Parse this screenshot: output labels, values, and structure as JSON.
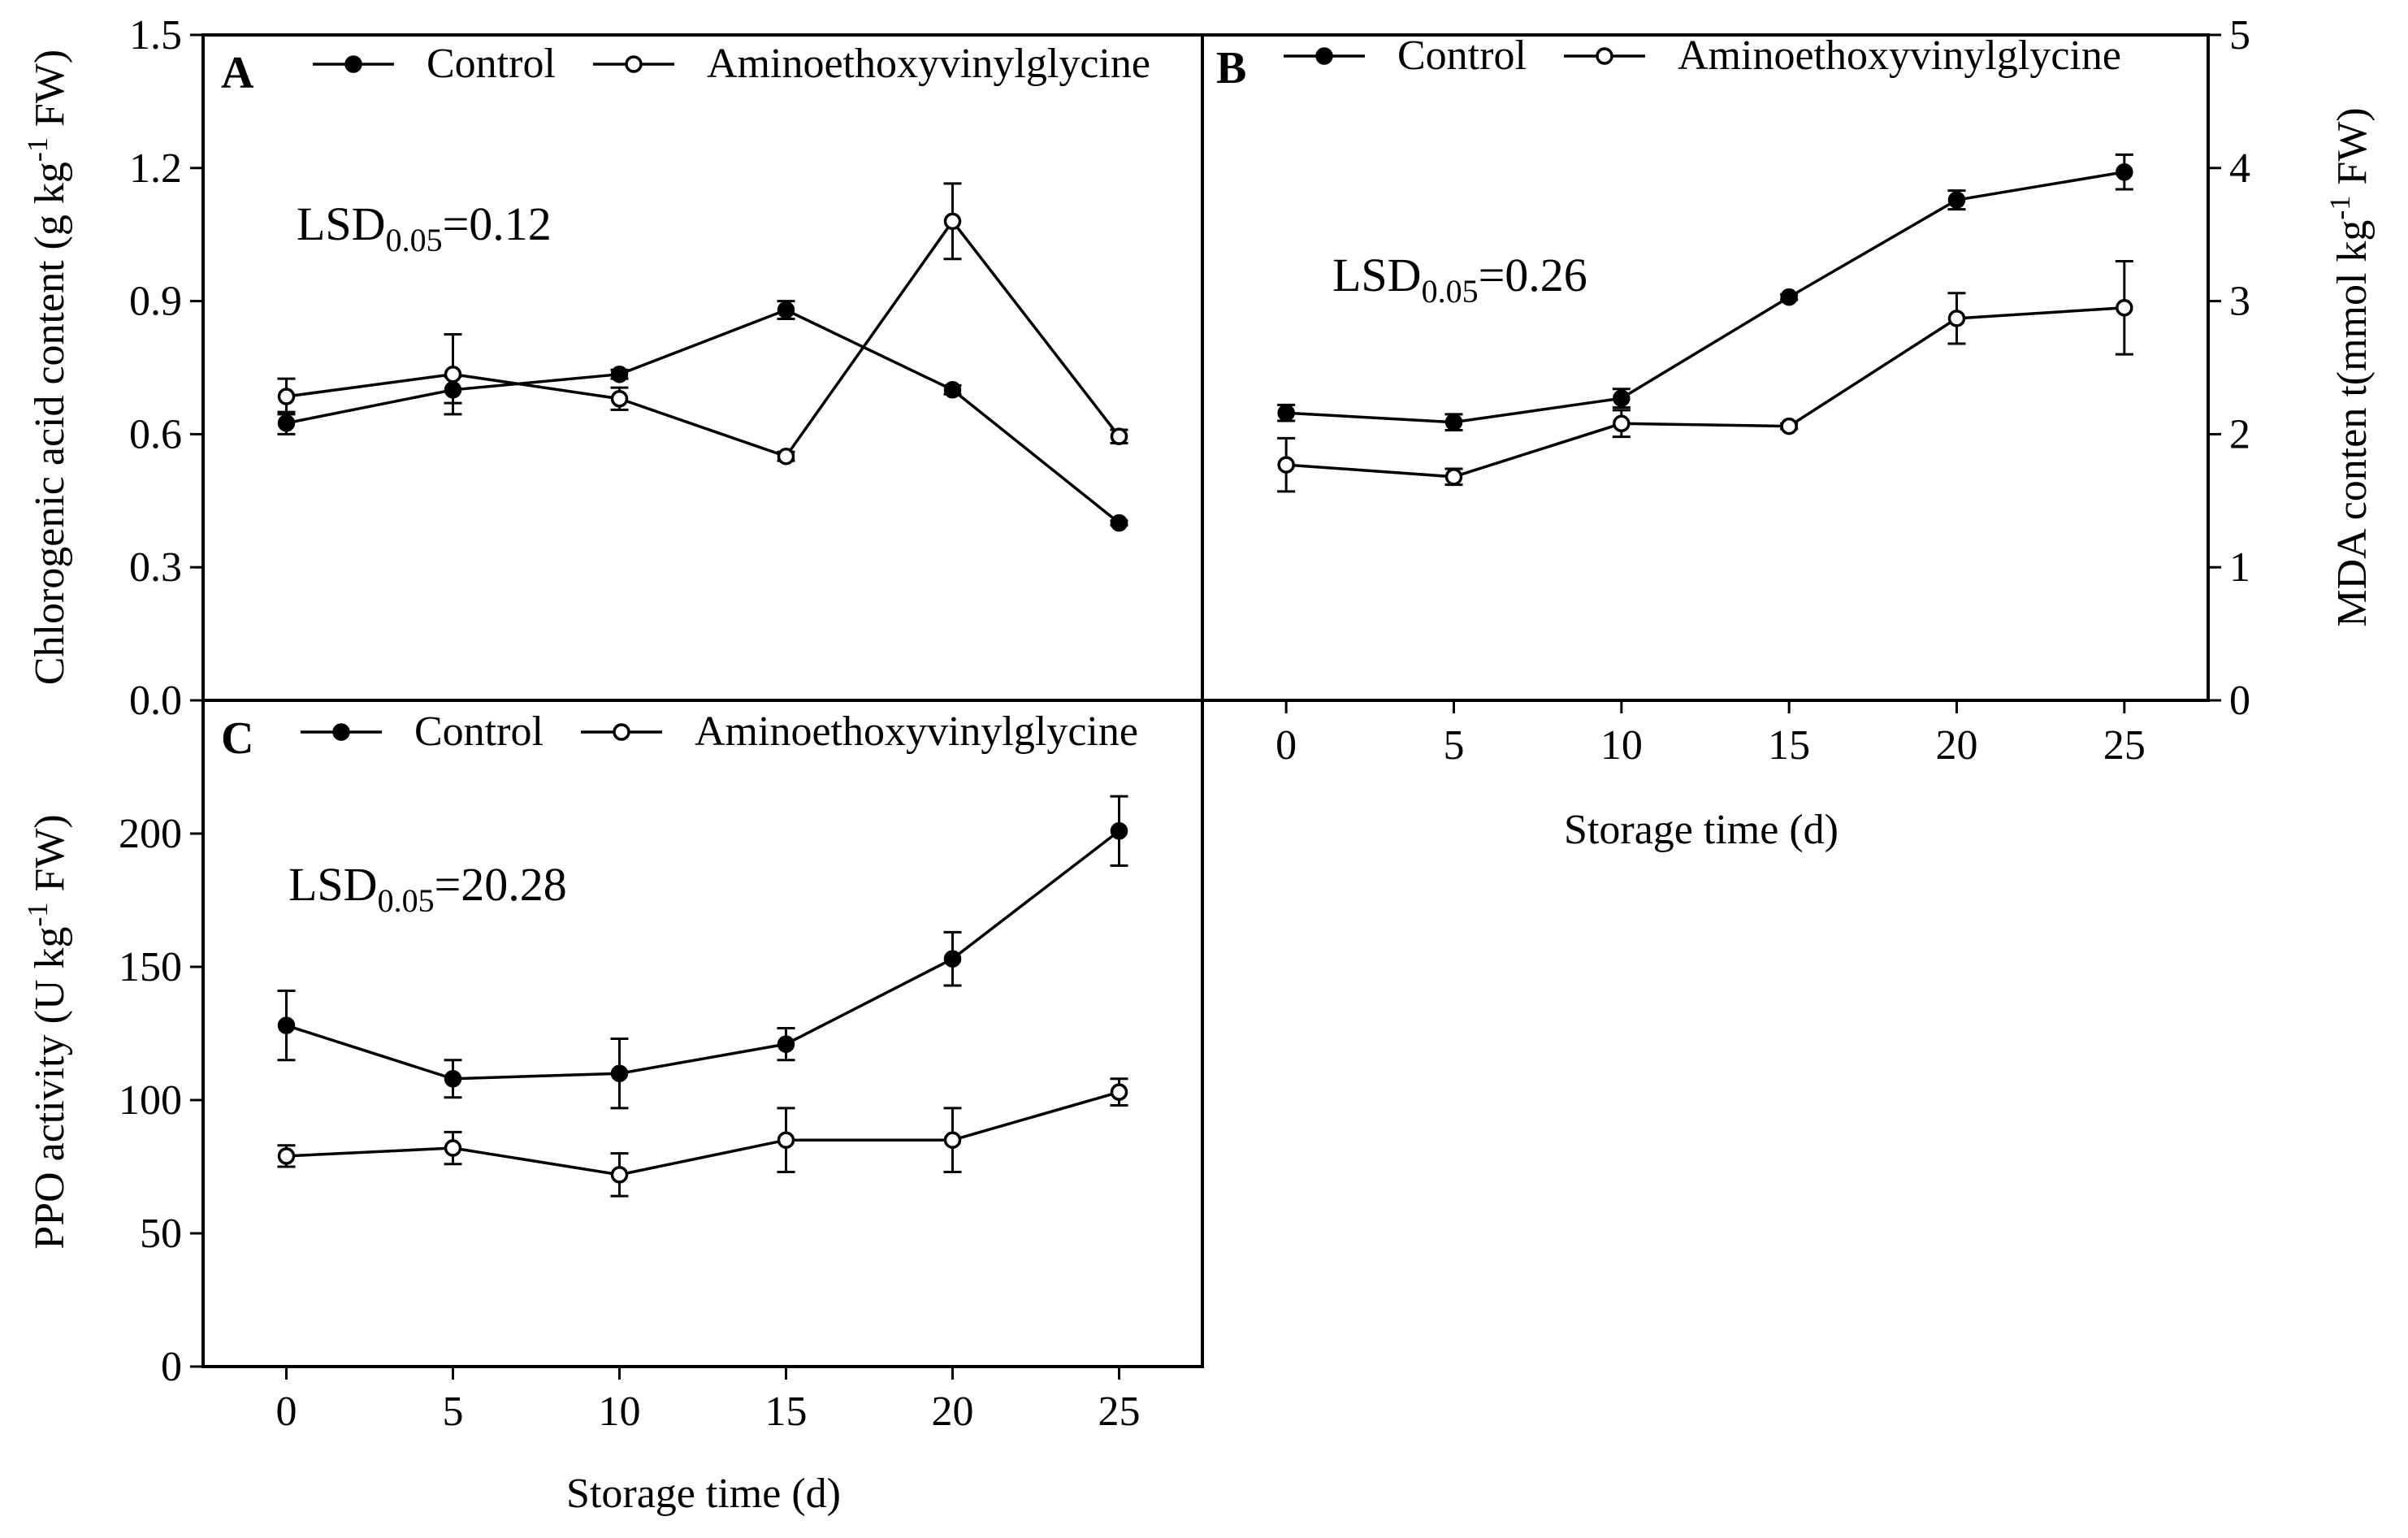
{
  "chart_data": [
    {
      "panel": "A",
      "type": "line",
      "x": [
        0,
        5,
        10,
        15,
        20,
        25
      ],
      "xlim": [
        -2.5,
        27.5
      ],
      "ylim": [
        0,
        1.5
      ],
      "yticks": [
        0.0,
        0.3,
        0.6,
        0.9,
        1.2,
        1.5
      ],
      "ytick_labels": [
        "0.0",
        "0.3",
        "0.6",
        "0.9",
        "1.2",
        "1.5"
      ],
      "ylabel": "Chlorogenic acid content (g kg",
      "ylabel_sup": "-1",
      "ylabel_tail": " FW)",
      "lsd_prefix": "LSD",
      "lsd_sub": "0.05",
      "lsd_value": "=0.12",
      "series": [
        {
          "name": "Control",
          "filled": true,
          "values": [
            0.625,
            0.7,
            0.735,
            0.88,
            0.7,
            0.4
          ],
          "errors": [
            0.025,
            0.03,
            0.01,
            0.02,
            0.01,
            0.005
          ]
        },
        {
          "name": "Aminoethoxyvinylglycine",
          "filled": false,
          "values": [
            0.685,
            0.735,
            0.68,
            0.55,
            1.08,
            0.595
          ],
          "errors": [
            0.04,
            0.09,
            0.025,
            0.01,
            0.085,
            0.015
          ]
        }
      ]
    },
    {
      "panel": "B",
      "type": "line",
      "x": [
        0,
        5,
        10,
        15,
        20,
        25
      ],
      "xticks": [
        0,
        5,
        10,
        15,
        20,
        25
      ],
      "xlim": [
        -2.5,
        27.5
      ],
      "xlabel": "Storage time (d)",
      "ylim": [
        0,
        5
      ],
      "yticks": [
        0,
        1,
        2,
        3,
        4,
        5
      ],
      "ytick_labels": [
        "0",
        "1",
        "2",
        "3",
        "4",
        "5"
      ],
      "ylabel": "MDA conten t(mmol kg",
      "ylabel_sup": "-1",
      "ylabel_tail": " FW)",
      "lsd_prefix": "LSD",
      "lsd_sub": "0.05",
      "lsd_value": "=0.26",
      "series": [
        {
          "name": "Control",
          "filled": true,
          "values": [
            2.16,
            2.09,
            2.27,
            3.03,
            3.76,
            3.97
          ],
          "errors": [
            0.06,
            0.06,
            0.07,
            0.02,
            0.07,
            0.13
          ]
        },
        {
          "name": "Aminoethoxyvinylglycine",
          "filled": false,
          "values": [
            1.77,
            1.68,
            2.08,
            2.06,
            2.87,
            2.95
          ],
          "errors": [
            0.2,
            0.06,
            0.1,
            0.02,
            0.19,
            0.35
          ]
        }
      ]
    },
    {
      "panel": "C",
      "type": "line",
      "x": [
        0,
        5,
        10,
        15,
        20,
        25
      ],
      "xticks": [
        0,
        5,
        10,
        15,
        20,
        25
      ],
      "xlim": [
        -2.5,
        27.5
      ],
      "xlabel": "Storage time (d)",
      "ylim": [
        0,
        250
      ],
      "yticks": [
        0,
        50,
        100,
        150,
        200
      ],
      "ytick_labels": [
        "0",
        "50",
        "100",
        "150",
        "200"
      ],
      "ylabel": "PPO activity (U kg",
      "ylabel_sup": "-1",
      "ylabel_tail": " FW)",
      "lsd_prefix": "LSD",
      "lsd_sub": "0.05",
      "lsd_value": "=20.28",
      "series": [
        {
          "name": "Control",
          "filled": true,
          "values": [
            128,
            108,
            110,
            121,
            153,
            201
          ],
          "errors": [
            13,
            7,
            13,
            6,
            10,
            13
          ]
        },
        {
          "name": "Aminoethoxyvinylglycine",
          "filled": false,
          "values": [
            79,
            82,
            72,
            85,
            85,
            103
          ],
          "errors": [
            4,
            6,
            8,
            12,
            12,
            5
          ]
        }
      ]
    }
  ]
}
